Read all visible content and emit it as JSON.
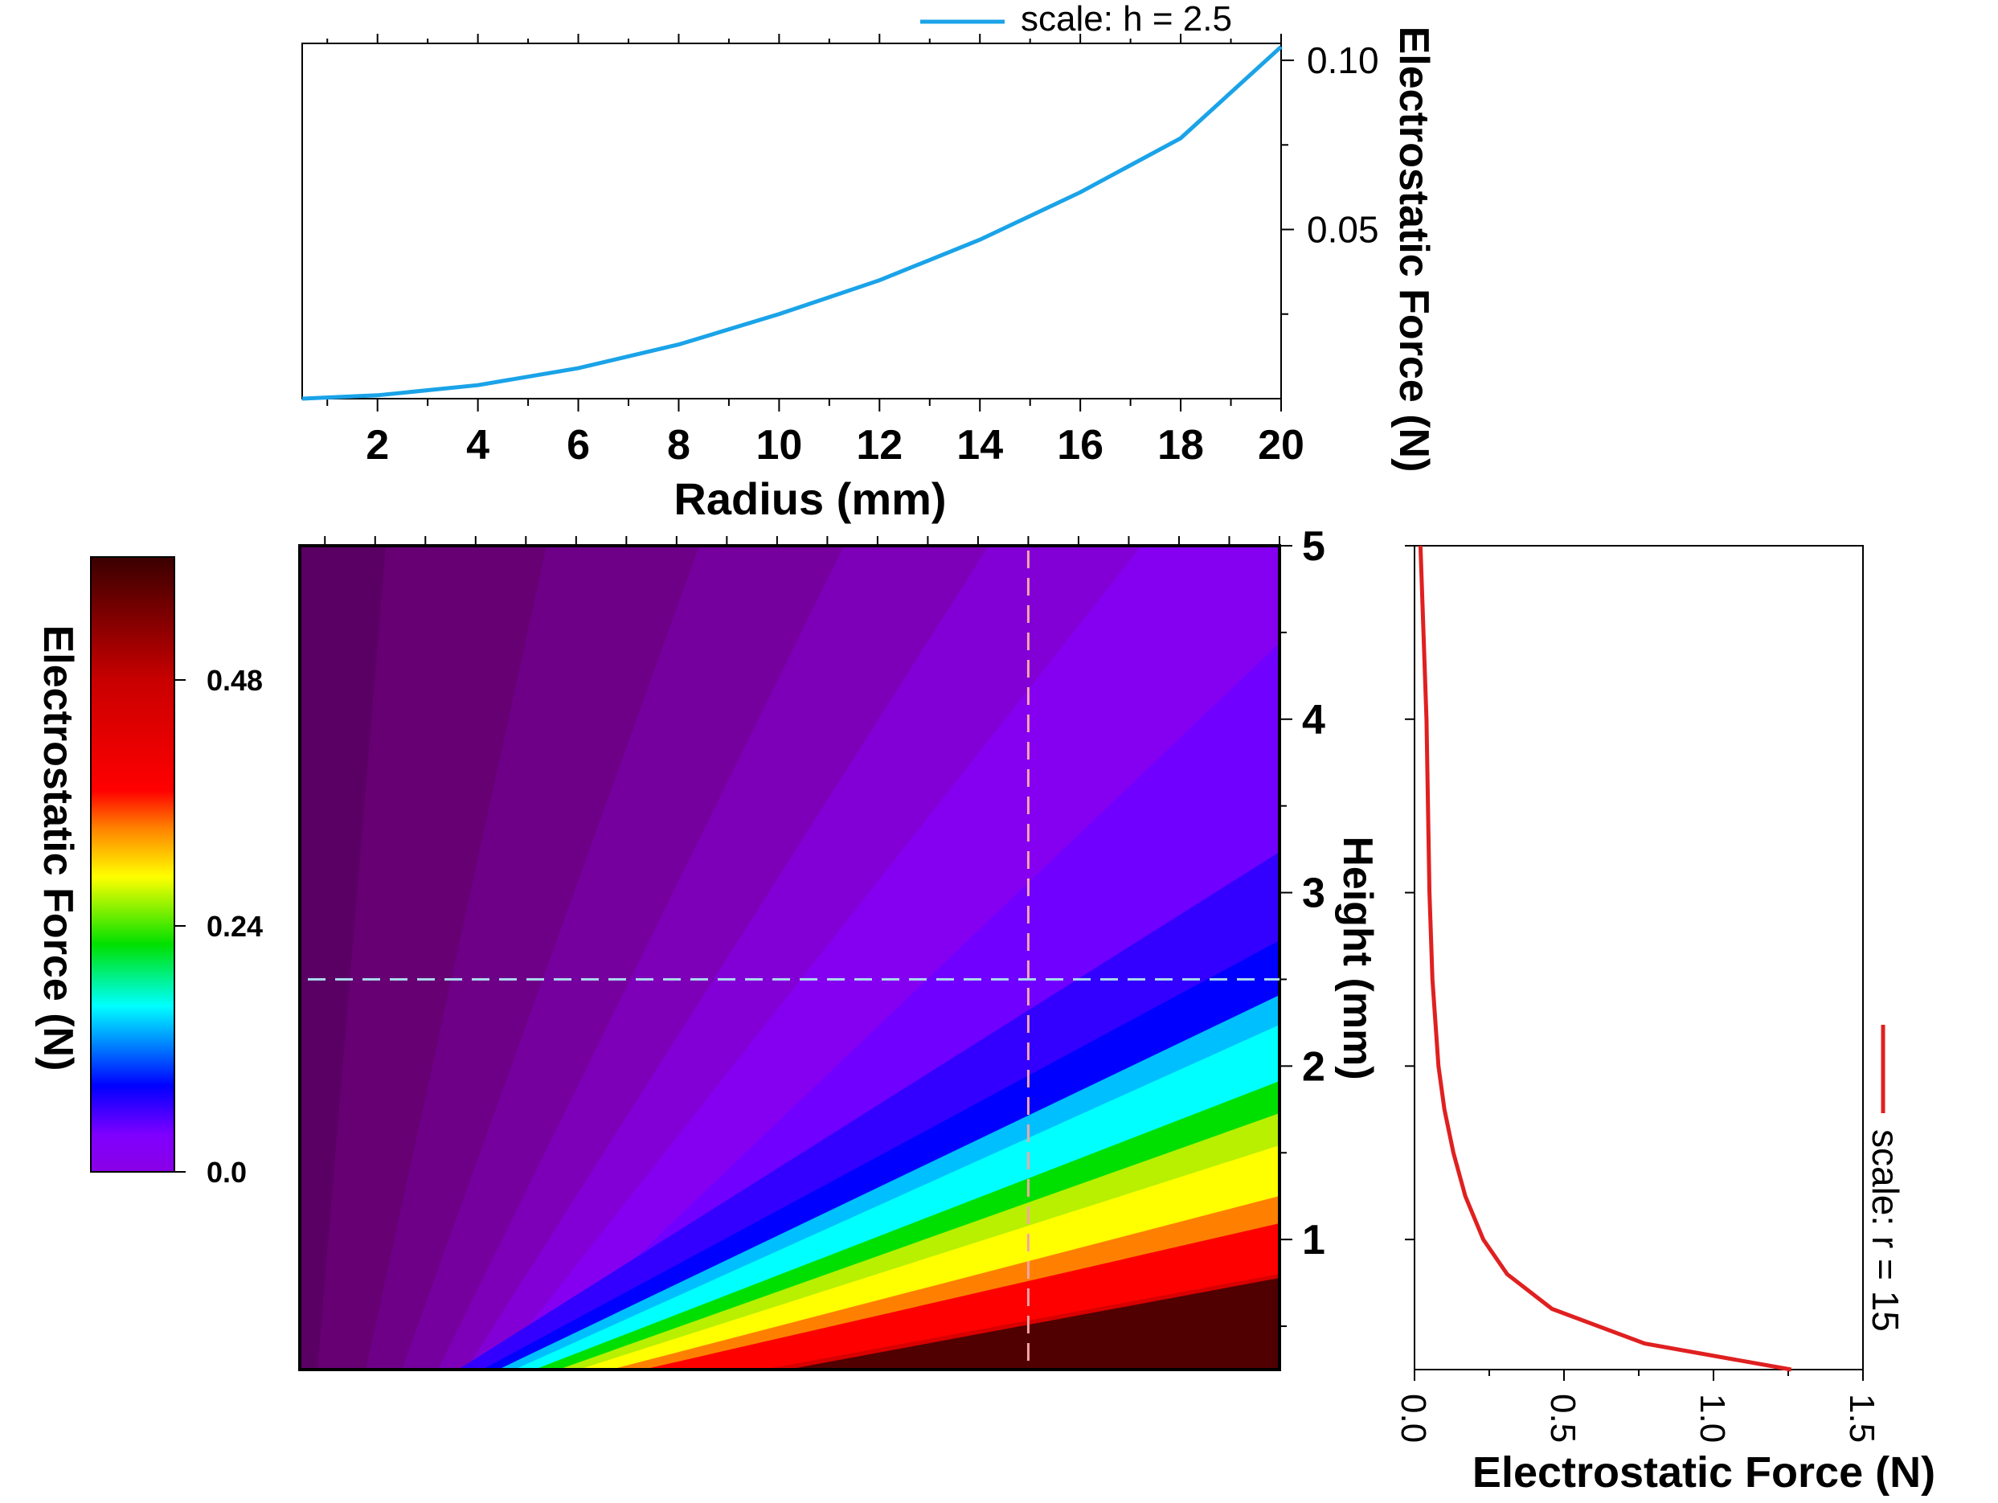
{
  "chart_data": [
    {
      "type": "line",
      "panel": "top",
      "xlabel": "Radius (mm)",
      "ylabel": "Electrostatic Force (N)",
      "xlim": [
        0.5,
        20
      ],
      "ylim": [
        0,
        0.105
      ],
      "xticks": [
        2,
        4,
        6,
        8,
        10,
        12,
        14,
        16,
        18,
        20
      ],
      "yticks": [
        0.05,
        0.1
      ],
      "ytick_labels": [
        "0.05",
        "0.10"
      ],
      "y_axis_side": "right",
      "legend_position": "top-right",
      "series": [
        {
          "name": "scale: h = 2.5",
          "color": "#1aa3e8",
          "x": [
            0.5,
            2,
            4,
            6,
            8,
            10,
            12,
            14,
            16,
            18,
            20
          ],
          "y": [
            0.0,
            0.001,
            0.004,
            0.009,
            0.016,
            0.025,
            0.035,
            0.047,
            0.061,
            0.077,
            0.104
          ]
        }
      ]
    },
    {
      "type": "heatmap",
      "panel": "main",
      "xlabel": "",
      "ylabel": "Height (mm)",
      "xlim": [
        0.5,
        20
      ],
      "ylim": [
        0.25,
        5
      ],
      "yticks": [
        1,
        2,
        3,
        4,
        5
      ],
      "y_axis_side": "right",
      "colorbar": {
        "label": "Electrostatic Force (N)",
        "range": [
          0,
          0.6
        ],
        "ticks": [
          0.0,
          0.24,
          0.48
        ],
        "tick_labels": [
          "0.0",
          "0.24",
          "0.48"
        ],
        "colors": [
          "#8a00e6",
          "#7f00ff",
          "#0000ff",
          "#00ffff",
          "#00e000",
          "#ffff00",
          "#ff8000",
          "#ff0000",
          "#c80000",
          "#3a0000"
        ]
      },
      "guides": [
        {
          "orientation": "horizontal",
          "value": 2.5,
          "color": "#a9d8ec"
        },
        {
          "orientation": "vertical",
          "value": 15,
          "color": "#f4a6a6"
        }
      ]
    },
    {
      "type": "line",
      "panel": "right",
      "xlabel": "Electrostatic Force (N)",
      "ylabel": "",
      "xlim": [
        0,
        1.5
      ],
      "ylim": [
        0.25,
        5
      ],
      "xticks": [
        0.0,
        0.5,
        1.0,
        1.5
      ],
      "xtick_labels": [
        "0.0",
        "0.5",
        "1.0",
        "1.5"
      ],
      "legend_position": "right",
      "series": [
        {
          "name": "scale: r = 15",
          "color": "#e02020",
          "x": [
            1.26,
            0.77,
            0.46,
            0.31,
            0.23,
            0.17,
            0.13,
            0.1,
            0.08,
            0.06,
            0.05,
            0.04,
            0.02
          ],
          "y": [
            0.25,
            0.4,
            0.6,
            0.8,
            1.0,
            1.25,
            1.5,
            1.75,
            2.0,
            2.5,
            3.0,
            4.0,
            5.0
          ]
        }
      ]
    }
  ]
}
